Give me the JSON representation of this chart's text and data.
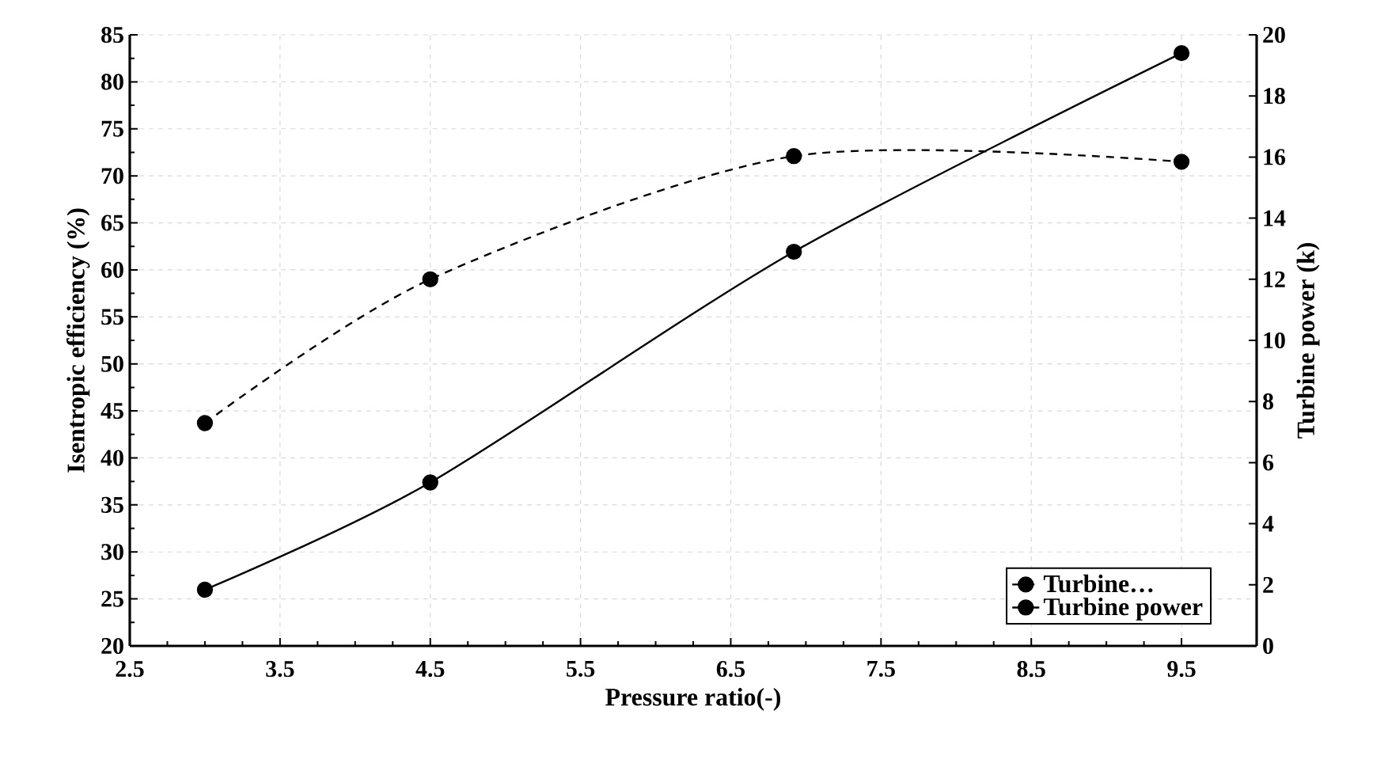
{
  "chart_data": {
    "type": "line",
    "xlabel": "Pressure ratio(-)",
    "ylabel": "Isentropic efficiency (%)",
    "y2label": "Turbine power (k)",
    "xlim": [
      2.5,
      10
    ],
    "xticks": [
      2.5,
      3.5,
      4.5,
      5.5,
      6.5,
      7.5,
      8.5,
      9.5
    ],
    "ylim": [
      20,
      85
    ],
    "yticks": [
      20,
      25,
      30,
      35,
      40,
      45,
      50,
      55,
      60,
      65,
      70,
      75,
      80,
      85
    ],
    "y2lim": [
      0,
      20
    ],
    "y2ticks": [
      0,
      2,
      4,
      6,
      8,
      10,
      12,
      14,
      16,
      18,
      20
    ],
    "grid": true,
    "legend": "bottom right",
    "marker": "circle",
    "series": [
      {
        "name": "Turbine…",
        "color": "#000000",
        "line_style": "dashed",
        "x": [
          3,
          4.5,
          6.92,
          9.5
        ],
        "values": [
          43.7,
          59.0,
          72.1,
          71.5
        ]
      },
      {
        "name": "Turbine power",
        "color": "#000000",
        "line_style": "solid",
        "axis": "y2",
        "x": [
          3,
          4.5,
          6.92,
          9.5
        ],
        "values": [
          1.84,
          5.35,
          12.9,
          19.4
        ]
      }
    ]
  }
}
